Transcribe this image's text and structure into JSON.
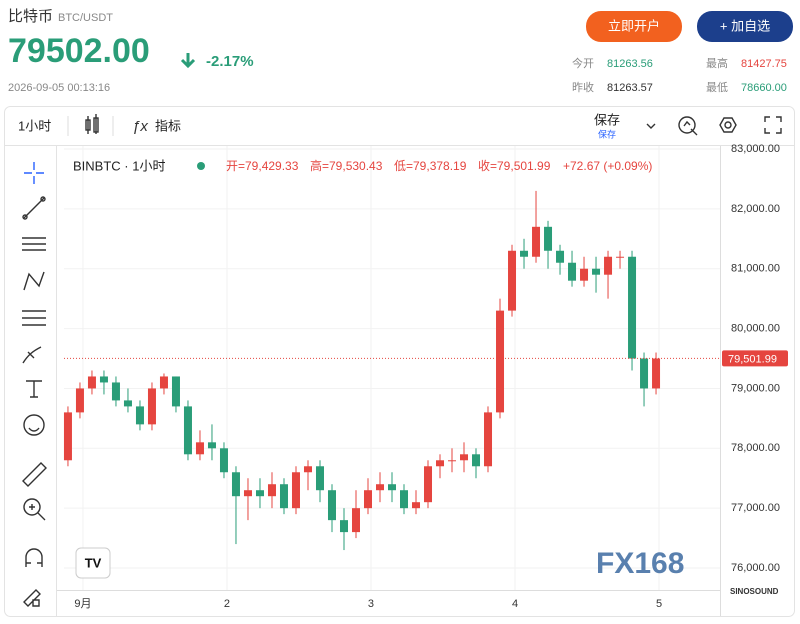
{
  "header": {
    "name": "比特币",
    "symbol": "BTC/USDT",
    "price": "79502.00",
    "change": "-2.17%",
    "time": "2026-09-05 00:13:16",
    "buttons": [
      "立即开户",
      "+ 加自选"
    ],
    "stats": [
      {
        "label": "今开",
        "value": "81263.56"
      },
      {
        "label": "最高",
        "value": "81427.75"
      },
      {
        "label": "昨收",
        "value": "81263.57"
      },
      {
        "label": "最低",
        "value": "78660.00"
      }
    ]
  },
  "toolbar": {
    "interval": "1小时",
    "indicators": "指标",
    "save": "保存",
    "save_sub": "保存"
  },
  "legend": {
    "symbol": "BINBTC · 1小时",
    "ohlc": [
      "开=79,429.33",
      "高=79,530.43",
      "低=79,378.19",
      "收=79,501.99",
      "+72.67 (+0.09%)"
    ]
  },
  "watermark": [
    "FX168",
    "SINOSOUND"
  ],
  "chart_data": {
    "type": "candlestick",
    "up_color": "#e5453f",
    "down_color": "#2a9d78",
    "grid": true,
    "open": [
      77800,
      78600,
      79000,
      79200,
      79100,
      78800,
      78700,
      78400,
      79000,
      79200,
      78700,
      77900,
      78100,
      78000,
      77600,
      77200,
      77300,
      77200,
      77400,
      77000,
      77600,
      77700,
      77300,
      76800,
      76600,
      77000,
      77300,
      77400,
      77300,
      77000,
      77100,
      77700,
      77800,
      77800,
      77900,
      77700,
      78600,
      80300,
      81300,
      81200,
      81700,
      81300,
      81100,
      80800,
      81000,
      80900,
      81200,
      81200,
      79500,
      79000
    ],
    "high": [
      78700,
      79100,
      79300,
      79300,
      79200,
      79000,
      78800,
      79100,
      79250,
      79200,
      78800,
      78300,
      78400,
      78100,
      77700,
      77500,
      77500,
      77600,
      77500,
      77700,
      77800,
      77800,
      77400,
      77000,
      77300,
      77500,
      77600,
      77600,
      77400,
      77300,
      77800,
      77900,
      78000,
      78100,
      78000,
      78700,
      80500,
      81400,
      81500,
      82300,
      81800,
      81400,
      81300,
      81200,
      81200,
      81300,
      81300,
      81300,
      79600,
      79600
    ],
    "low": [
      77700,
      78500,
      78900,
      78900,
      78700,
      78600,
      78300,
      78300,
      78900,
      78600,
      77800,
      77800,
      77800,
      77500,
      76400,
      76800,
      77000,
      77000,
      76900,
      76900,
      77300,
      77100,
      76600,
      76300,
      76500,
      76900,
      77100,
      77100,
      76900,
      76900,
      77000,
      77500,
      77600,
      77600,
      77500,
      77600,
      78500,
      80200,
      81000,
      81100,
      81000,
      80900,
      80700,
      80700,
      80600,
      80500,
      81000,
      79300,
      78700,
      78900
    ],
    "close": [
      78600,
      79000,
      79200,
      79100,
      78800,
      78700,
      78400,
      79000,
      79200,
      78700,
      77900,
      78100,
      78000,
      77600,
      77200,
      77300,
      77200,
      77400,
      77000,
      77600,
      77700,
      77300,
      76800,
      76600,
      77000,
      77300,
      77400,
      77300,
      77000,
      77100,
      77700,
      77800,
      77800,
      77900,
      77700,
      78600,
      80300,
      81300,
      81200,
      81700,
      81300,
      81100,
      80800,
      81000,
      80900,
      81200,
      81200,
      79500,
      79000,
      79500
    ],
    "last": {
      "value": 79501.99,
      "label": "79,501.99"
    },
    "xlim": [
      -0.33,
      54.33
    ],
    "xticks": [
      {
        "value": 1.25,
        "label": "9月"
      },
      {
        "value": 13.25,
        "label": "2"
      },
      {
        "value": 25.25,
        "label": "3"
      },
      {
        "value": 37.25,
        "label": "4"
      },
      {
        "value": 49.25,
        "label": "5"
      }
    ],
    "ylim": [
      75633,
      83050
    ],
    "yticks": [
      {
        "value": 76000,
        "label": "76,000.00"
      },
      {
        "value": 77000,
        "label": "77,000.00"
      },
      {
        "value": 78000,
        "label": "78,000.00"
      },
      {
        "value": 79000,
        "label": "79,000.00"
      },
      {
        "value": 80000,
        "label": "80,000.00"
      },
      {
        "value": 81000,
        "label": "81,000.00"
      },
      {
        "value": 82000,
        "label": "82,000.00"
      },
      {
        "value": 83000,
        "label": "83,000.00"
      }
    ]
  }
}
